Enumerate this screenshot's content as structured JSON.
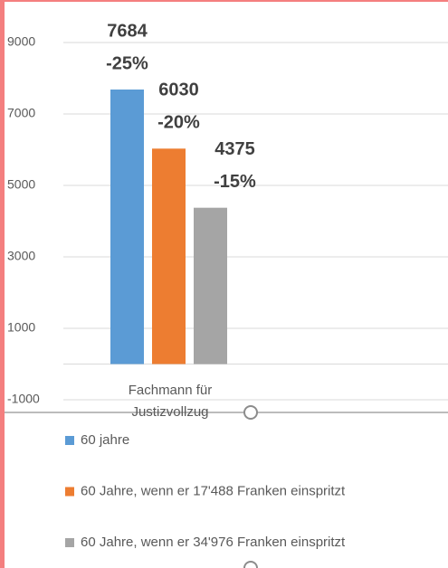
{
  "chart_data": {
    "type": "bar",
    "categories": [
      "Fachmann für Justizvollzug"
    ],
    "series": [
      {
        "name": "60 jahre",
        "color": "#5b9bd5",
        "values": [
          7684
        ],
        "change_labels": [
          "-25%"
        ]
      },
      {
        "name": "60 Jahre, wenn er 17'488 Franken einspritzt",
        "color": "#ed7d31",
        "values": [
          6030
        ],
        "change_labels": [
          "-20%"
        ]
      },
      {
        "name": "60 Jahre, wenn er 34'976 Franken einspritzt",
        "color": "#a5a5a5",
        "values": [
          4375
        ],
        "change_labels": [
          "-15%"
        ]
      }
    ],
    "ylim": [
      -1000,
      9000
    ],
    "yticks": [
      -1000,
      1000,
      3000,
      5000,
      7000,
      9000
    ],
    "grid": true,
    "legend": "bottom"
  }
}
